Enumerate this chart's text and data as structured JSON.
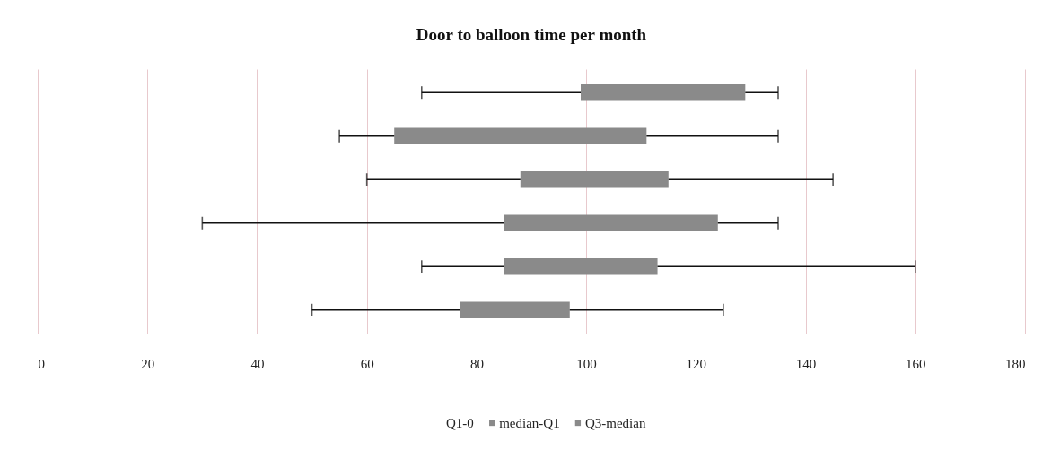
{
  "chart_data": {
    "type": "bar",
    "orientation": "horizontal",
    "title": "Door to balloon time per month",
    "categories": [
      null,
      null,
      null,
      null,
      null,
      null
    ],
    "base": [
      99,
      65,
      88,
      85,
      85,
      77
    ],
    "values": [
      30,
      46,
      27,
      39,
      28,
      20
    ],
    "errors": [
      [
        70,
        135
      ],
      [
        55,
        135
      ],
      [
        60,
        145
      ],
      [
        30,
        135
      ],
      [
        70,
        160
      ],
      [
        50,
        125
      ]
    ],
    "color": "#8a8a8a",
    "annotations": [
      "Q1-0",
      "median-Q1",
      "Q3-median"
    ],
    "xlim": [
      0,
      180
    ],
    "xticks": [
      0,
      20,
      40,
      60,
      80,
      100,
      120,
      140,
      160,
      180
    ],
    "grid": "x"
  }
}
